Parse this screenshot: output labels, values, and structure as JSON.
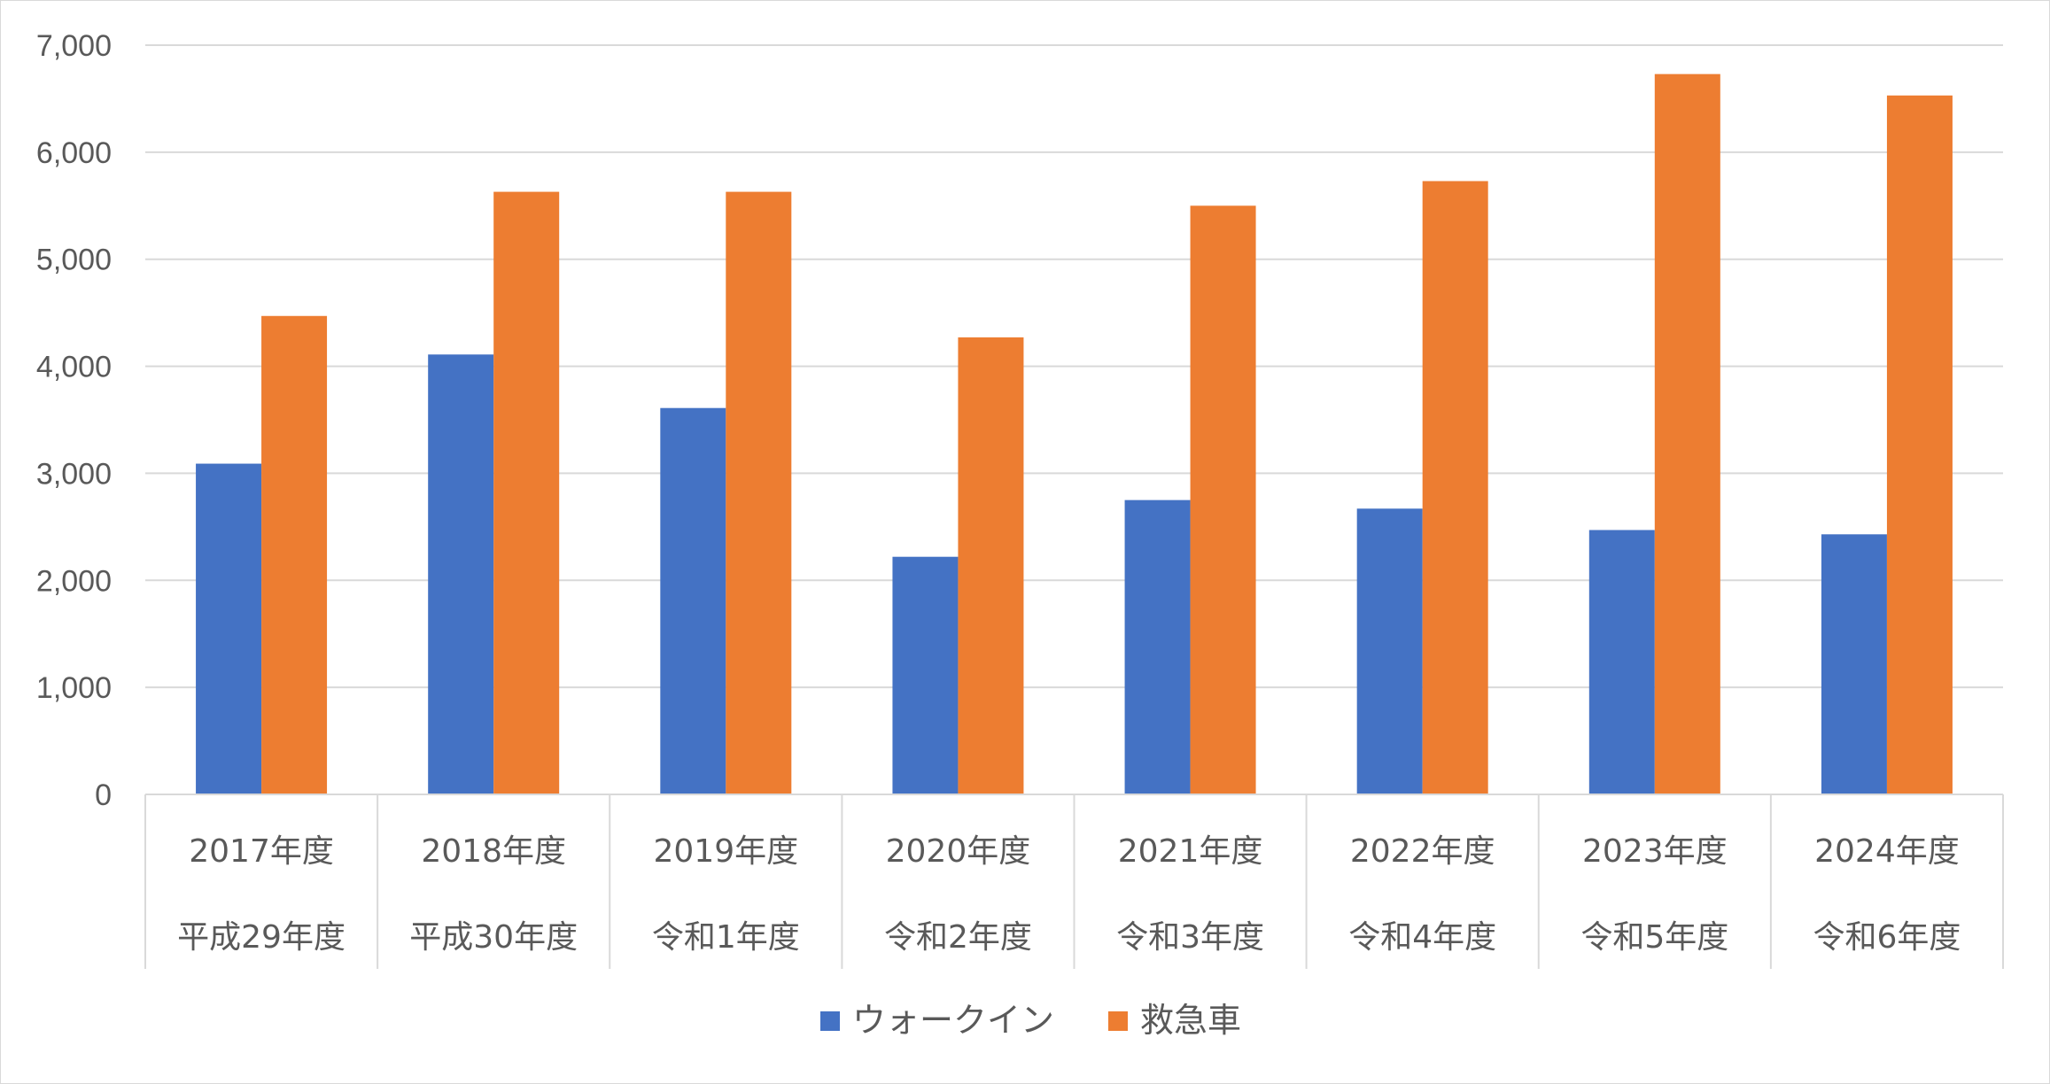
{
  "chart_data": {
    "type": "bar",
    "categories": [
      "2017年度",
      "2018年度",
      "2019年度",
      "2020年度",
      "2021年度",
      "2022年度",
      "2023年度",
      "2024年度"
    ],
    "sub_categories": [
      "平成29年度",
      "平成30年度",
      "令和1年度",
      "令和2年度",
      "令和3年度",
      "令和4年度",
      "令和5年度",
      "令和6年度"
    ],
    "series": [
      {
        "name": "ウォークイン",
        "color": "#4472C4",
        "values": [
          3090,
          4110,
          3610,
          2220,
          2750,
          2670,
          2470,
          2430
        ]
      },
      {
        "name": "救急車",
        "color": "#ED7D31",
        "values": [
          4470,
          5630,
          5630,
          4270,
          5500,
          5730,
          6730,
          6530
        ]
      }
    ],
    "title": "",
    "xlabel": "",
    "ylabel": "",
    "ylim": [
      0,
      7000
    ],
    "yticks": [
      0,
      1000,
      2000,
      3000,
      4000,
      5000,
      6000,
      7000
    ],
    "ytick_labels": [
      "0",
      "1,000",
      "2,000",
      "3,000",
      "4,000",
      "5,000",
      "6,000",
      "7,000"
    ],
    "grid": true,
    "legend_position": "bottom",
    "grid_color": "#d9d9d9",
    "text_color": "#595959"
  }
}
